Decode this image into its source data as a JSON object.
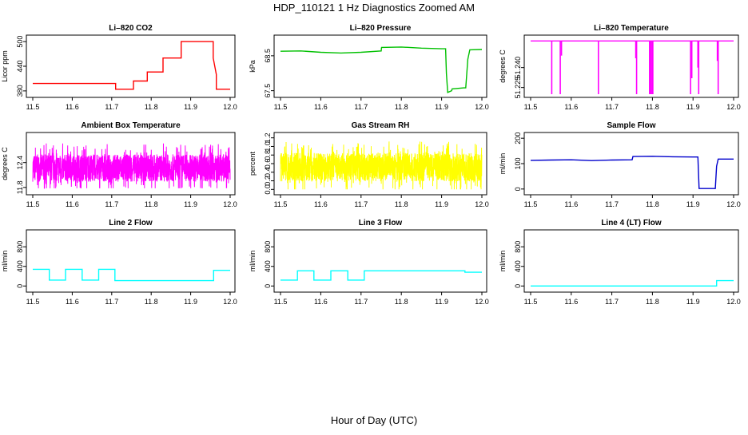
{
  "figure": {
    "title": "HDP_110121  1 Hz Diagnostics Zoomed AM",
    "xlabel": "Hour of Day (UTC)"
  },
  "chart_data": [
    {
      "type": "line",
      "title": "Li–820 CO2",
      "ylabel": "Licor ppm",
      "color": "#ff0000",
      "xlim": [
        11.5,
        12.0
      ],
      "ylim": [
        372,
        508
      ],
      "yticks": [
        "380",
        "440",
        "500"
      ],
      "ytick_values": [
        380,
        440,
        500
      ],
      "xticks": [
        "11.5",
        "11.6",
        "11.7",
        "11.8",
        "11.9",
        "12.0"
      ],
      "xtick_values": [
        11.5,
        11.6,
        11.7,
        11.8,
        11.9,
        12.0
      ],
      "series": [
        {
          "x": [
            11.5,
            11.71,
            11.71,
            11.755,
            11.755,
            11.79,
            11.79,
            11.83,
            11.83,
            11.876,
            11.876,
            11.957,
            11.957,
            11.965,
            11.965,
            12.0
          ],
          "y": [
            398,
            398,
            384,
            384,
            404,
            404,
            426,
            426,
            460,
            460,
            500,
            500,
            460,
            420,
            384,
            384
          ]
        }
      ]
    },
    {
      "type": "line",
      "title": "Li–820 Pressure",
      "ylabel": "kPa",
      "color": "#00c000",
      "xlim": [
        11.5,
        12.0
      ],
      "ylim": [
        67.4,
        69.0
      ],
      "yticks": [
        "67.5",
        "68.5"
      ],
      "ytick_values": [
        67.5,
        68.5
      ],
      "xticks": [
        "11.5",
        "11.6",
        "11.7",
        "11.8",
        "11.9",
        "12.0"
      ],
      "xtick_values": [
        11.5,
        11.6,
        11.7,
        11.8,
        11.9,
        12.0
      ],
      "series": [
        {
          "x": [
            11.5,
            11.55,
            11.6,
            11.65,
            11.7,
            11.75,
            11.751,
            11.8,
            11.85,
            11.9,
            11.91,
            11.912,
            11.915,
            11.925,
            11.926,
            11.955,
            11.96,
            11.965,
            11.97,
            12.0
          ],
          "y": [
            68.63,
            68.64,
            68.6,
            68.58,
            68.6,
            68.64,
            68.74,
            68.75,
            68.72,
            68.7,
            68.7,
            68.0,
            67.45,
            67.5,
            67.55,
            67.58,
            67.58,
            68.4,
            68.67,
            68.68
          ]
        }
      ]
    },
    {
      "type": "line",
      "title": "Li–820 Temperature",
      "ylabel": "degrees C",
      "color": "#ff00ff",
      "xlim": [
        11.5,
        12.0
      ],
      "ylim": [
        51.22,
        51.262
      ],
      "yticks": [
        "51.225",
        "51.240"
      ],
      "ytick_values": [
        51.225,
        51.24
      ],
      "xticks": [
        "11.5",
        "11.6",
        "11.7",
        "11.8",
        "11.9",
        "12.0"
      ],
      "xtick_values": [
        11.5,
        11.6,
        11.7,
        11.8,
        11.9,
        12.0
      ],
      "series": [
        {
          "baseline": 51.26,
          "spikes": [
            {
              "x": 11.552,
              "y": 51.22
            },
            {
              "x": 11.573,
              "y": 51.22
            },
            {
              "x": 11.576,
              "y": 51.249
            },
            {
              "x": 11.667,
              "y": 51.22
            },
            {
              "x": 11.759,
              "y": 51.247
            },
            {
              "x": 11.761,
              "y": 51.22
            },
            {
              "x": 11.793,
              "y": 51.22
            },
            {
              "x": 11.796,
              "y": 51.22
            },
            {
              "x": 11.799,
              "y": 51.22
            },
            {
              "x": 11.801,
              "y": 51.22
            },
            {
              "x": 11.894,
              "y": 51.22
            },
            {
              "x": 11.897,
              "y": 51.232
            },
            {
              "x": 11.912,
              "y": 51.24
            },
            {
              "x": 11.914,
              "y": 51.22
            },
            {
              "x": 11.96,
              "y": 51.245
            },
            {
              "x": 11.962,
              "y": 51.22
            }
          ]
        }
      ]
    },
    {
      "type": "line",
      "title": "Ambient Box Temperature",
      "ylabel": "degrees C",
      "color": "#ff00ff",
      "xlim": [
        11.5,
        12.0
      ],
      "ylim": [
        11.7,
        13.05
      ],
      "yticks": [
        "11.8",
        "12.4"
      ],
      "ytick_values": [
        11.8,
        12.4
      ],
      "xticks": [
        "11.5",
        "11.6",
        "11.7",
        "11.8",
        "11.9",
        "12.0"
      ],
      "xtick_values": [
        11.5,
        11.6,
        11.7,
        11.8,
        11.9,
        12.0
      ],
      "series": [
        {
          "noise": {
            "center": 12.27,
            "low": 11.78,
            "high": 12.98,
            "points": 1800,
            "seed": 7
          }
        }
      ]
    },
    {
      "type": "line",
      "title": "Gas Stream RH",
      "ylabel": "percent",
      "color": "#ffff00",
      "xlim": [
        11.5,
        12.0
      ],
      "ylim": [
        -0.05,
        1.25
      ],
      "yticks": [
        "0.0",
        "0.2",
        "0.4",
        "0.6",
        "0.8",
        "1.0",
        "1.2"
      ],
      "ytick_values": [
        0.0,
        0.2,
        0.4,
        0.6,
        0.8,
        1.0,
        1.2
      ],
      "xticks": [
        "11.5",
        "11.6",
        "11.7",
        "11.8",
        "11.9",
        "12.0"
      ],
      "xtick_values": [
        11.5,
        11.6,
        11.7,
        11.8,
        11.9,
        12.0
      ],
      "series": [
        {
          "noise": {
            "center": 0.52,
            "low": 0.0,
            "high": 1.2,
            "points": 1800,
            "seed": 13
          }
        }
      ]
    },
    {
      "type": "line",
      "title": "Sample Flow",
      "ylabel": "ml/min",
      "color": "#0000cc",
      "xlim": [
        11.5,
        12.0
      ],
      "ylim": [
        -10,
        210
      ],
      "yticks": [
        "0",
        "100",
        "200"
      ],
      "ytick_values": [
        0,
        100,
        200
      ],
      "xticks": [
        "11.5",
        "11.6",
        "11.7",
        "11.8",
        "11.9",
        "12.0"
      ],
      "xtick_values": [
        11.5,
        11.6,
        11.7,
        11.8,
        11.9,
        12.0
      ],
      "series": [
        {
          "x": [
            11.5,
            11.55,
            11.6,
            11.65,
            11.7,
            11.75,
            11.752,
            11.8,
            11.85,
            11.9,
            11.912,
            11.915,
            11.955,
            11.958,
            11.962,
            12.0
          ],
          "y": [
            113,
            114,
            115,
            112,
            114,
            115,
            128,
            129,
            127,
            126,
            126,
            2,
            2,
            90,
            118,
            118
          ]
        }
      ]
    },
    {
      "type": "line",
      "title": "Line 2 Flow",
      "ylabel": "ml/min",
      "color": "#00ffff",
      "xlim": [
        11.5,
        12.0
      ],
      "ylim": [
        -60,
        1080
      ],
      "yticks": [
        "0",
        "400",
        "800"
      ],
      "ytick_values": [
        0,
        400,
        800
      ],
      "xticks": [
        "11.5",
        "11.6",
        "11.7",
        "11.8",
        "11.9",
        "12.0"
      ],
      "xtick_values": [
        11.5,
        11.6,
        11.7,
        11.8,
        11.9,
        12.0
      ],
      "series": [
        {
          "x": [
            11.5,
            11.542,
            11.542,
            11.583,
            11.583,
            11.625,
            11.625,
            11.667,
            11.667,
            11.708,
            11.708,
            11.958,
            11.958,
            12.0
          ],
          "y": [
            340,
            340,
            120,
            120,
            340,
            340,
            120,
            120,
            340,
            340,
            110,
            110,
            320,
            320
          ]
        }
      ]
    },
    {
      "type": "line",
      "title": "Line 3 Flow",
      "ylabel": "ml/min",
      "color": "#00ffff",
      "xlim": [
        11.5,
        12.0
      ],
      "ylim": [
        -60,
        1080
      ],
      "yticks": [
        "0",
        "400",
        "800"
      ],
      "ytick_values": [
        0,
        400,
        800
      ],
      "xticks": [
        "11.5",
        "11.6",
        "11.7",
        "11.8",
        "11.9",
        "12.0"
      ],
      "xtick_values": [
        11.5,
        11.6,
        11.7,
        11.8,
        11.9,
        12.0
      ],
      "series": [
        {
          "x": [
            11.5,
            11.542,
            11.542,
            11.583,
            11.583,
            11.625,
            11.625,
            11.667,
            11.667,
            11.708,
            11.708,
            11.958,
            11.958,
            12.0
          ],
          "y": [
            120,
            120,
            310,
            310,
            120,
            120,
            310,
            310,
            120,
            120,
            310,
            310,
            280,
            280
          ]
        }
      ]
    },
    {
      "type": "line",
      "title": "Line 4 (LT) Flow",
      "ylabel": "ml/min",
      "color": "#00ffff",
      "xlim": [
        11.5,
        12.0
      ],
      "ylim": [
        -60,
        1080
      ],
      "yticks": [
        "0",
        "400",
        "800"
      ],
      "ytick_values": [
        0,
        400,
        800
      ],
      "xticks": [
        "11.5",
        "11.6",
        "11.7",
        "11.8",
        "11.9",
        "12.0"
      ],
      "xtick_values": [
        11.5,
        11.6,
        11.7,
        11.8,
        11.9,
        12.0
      ],
      "series": [
        {
          "x": [
            11.5,
            11.958,
            11.958,
            12.0
          ],
          "y": [
            0,
            0,
            110,
            110
          ]
        }
      ]
    }
  ]
}
